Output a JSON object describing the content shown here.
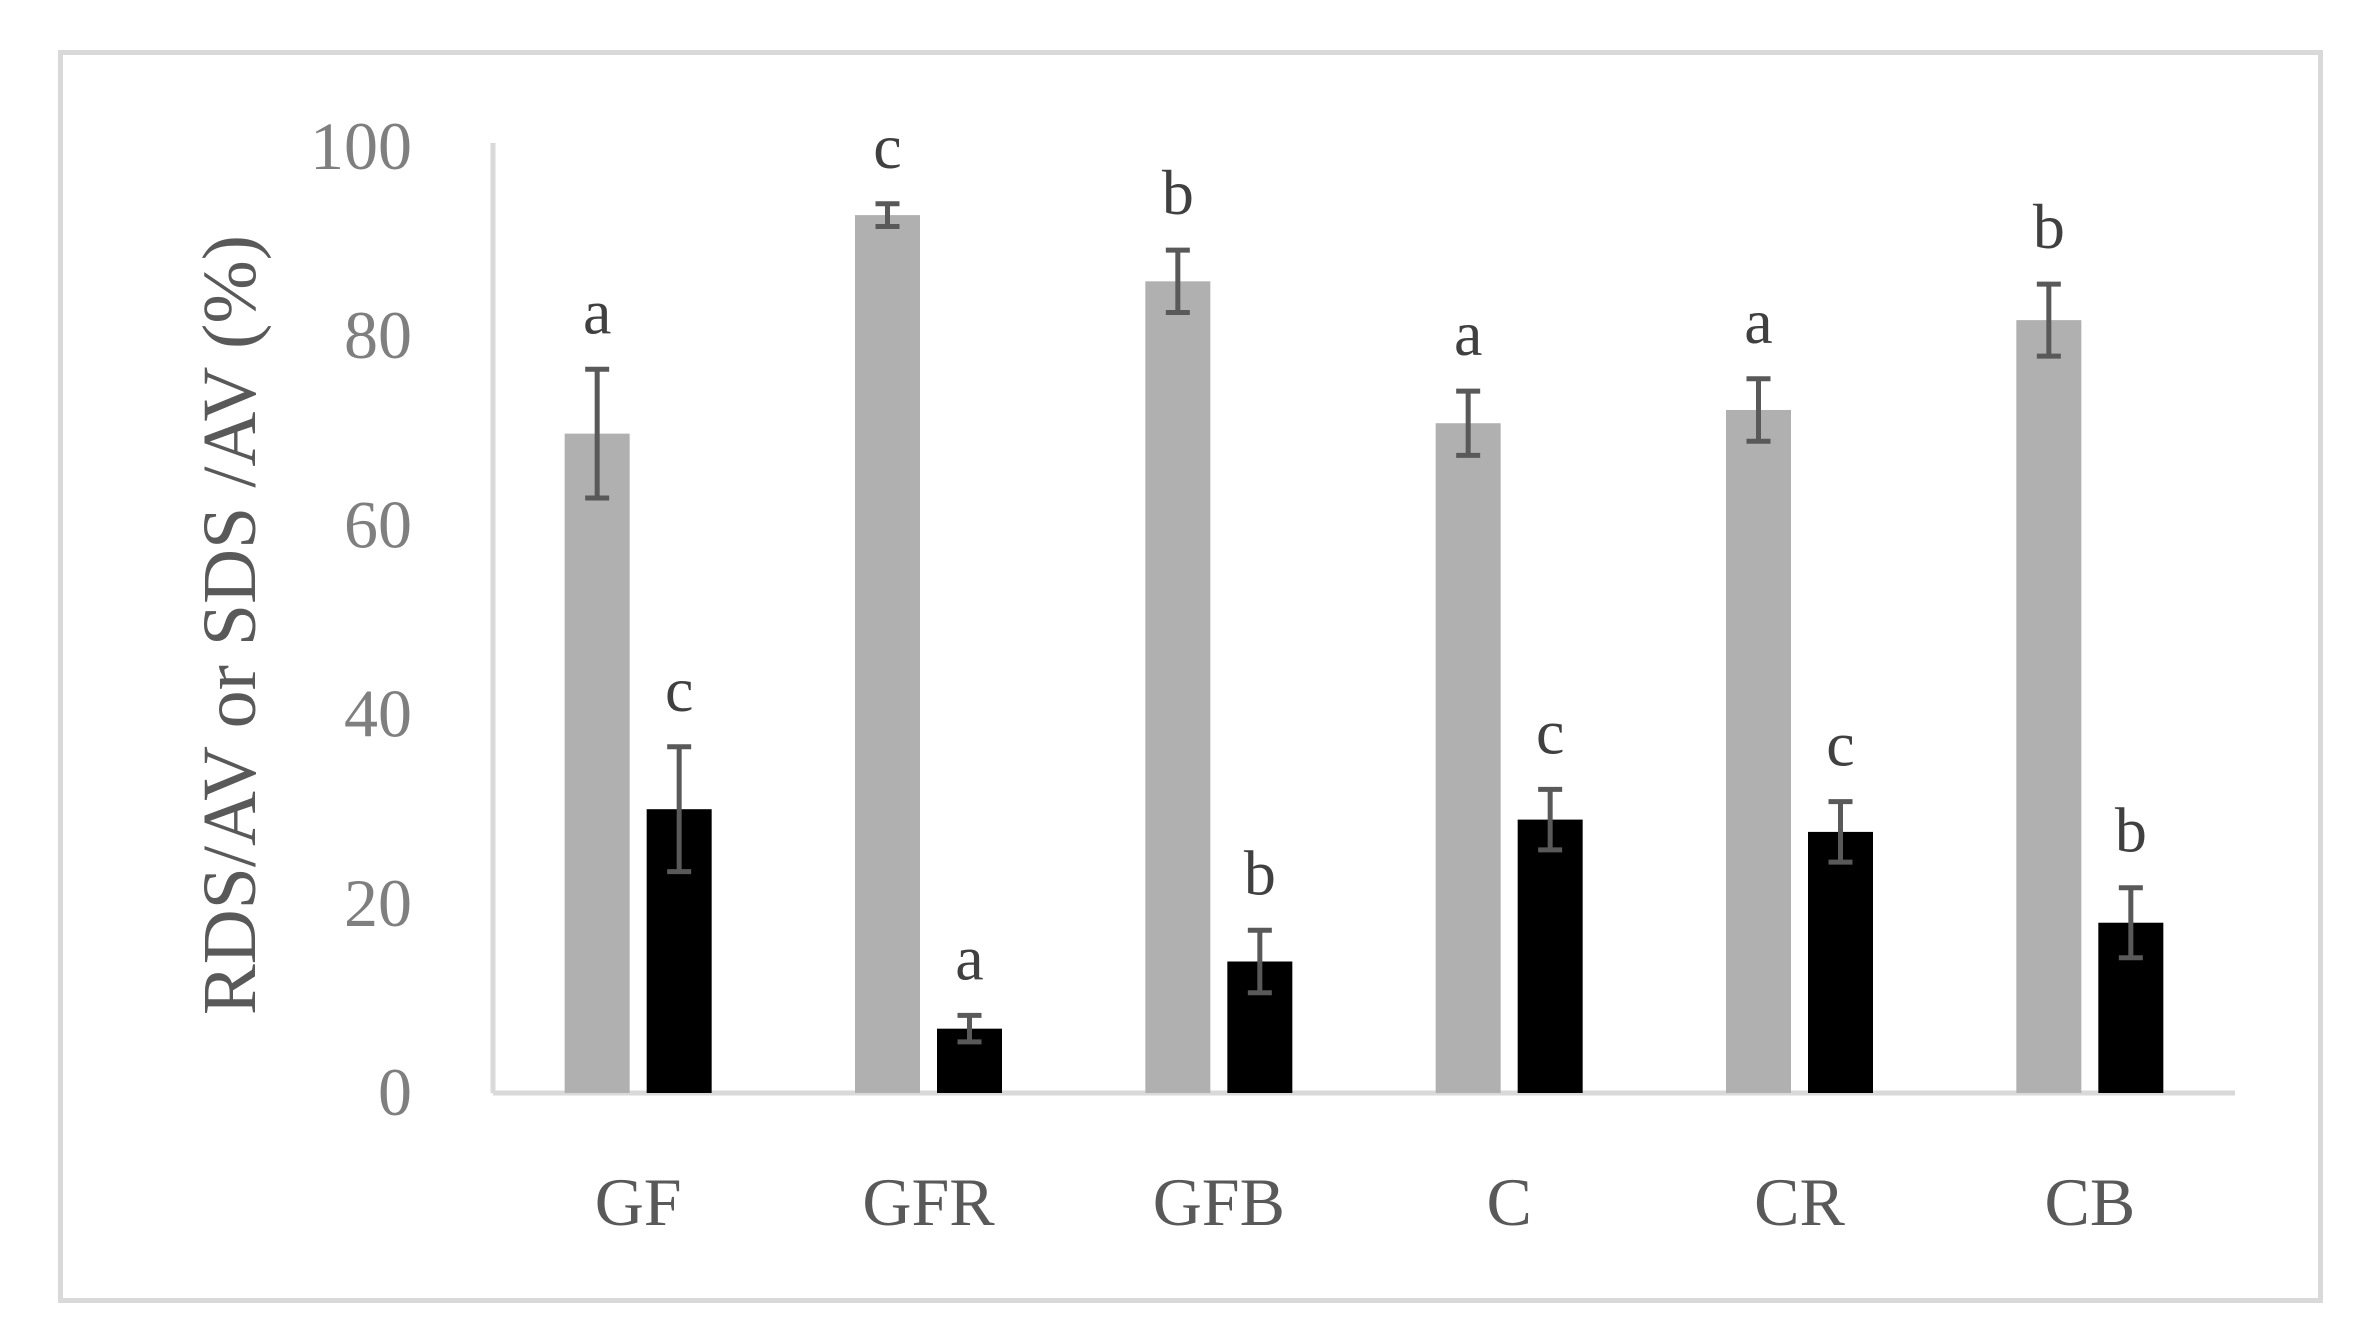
{
  "chart_data": {
    "type": "bar",
    "categories": [
      "GF",
      "GFR",
      "GFB",
      "C",
      "CR",
      "CB"
    ],
    "series": [
      {
        "values": [
          69.7,
          92.8,
          85.8,
          70.8,
          72.2,
          81.7
        ],
        "errors": [
          6.8,
          1.2,
          3.3,
          3.4,
          3.3,
          3.8
        ],
        "letters": [
          "a",
          "c",
          "b",
          "a",
          "a",
          "b"
        ],
        "color": "#b0b0b0"
      },
      {
        "values": [
          30.0,
          6.8,
          13.9,
          28.9,
          27.6,
          18.0
        ],
        "errors": [
          6.6,
          1.4,
          3.3,
          3.2,
          3.2,
          3.7
        ],
        "letters": [
          "c",
          "a",
          "b",
          "c",
          "c",
          "b"
        ],
        "color": "#000000"
      }
    ],
    "xlabel": "",
    "ylabel": "RDS/AV or SDS /AV (%)",
    "ylim": [
      0,
      100
    ],
    "yticks": [
      "0",
      "20",
      "40",
      "60",
      "80",
      "100"
    ],
    "grid": false,
    "legend": "none",
    "error_bar_color": "#595959",
    "axis_color": "#d9d9d9"
  }
}
